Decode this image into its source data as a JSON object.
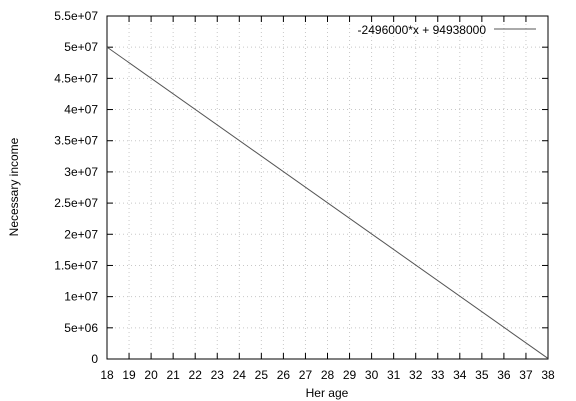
{
  "chart_data": {
    "type": "line",
    "title": "",
    "xlabel": "Her age",
    "ylabel": "Necessary income",
    "xlim": [
      18,
      38
    ],
    "ylim": [
      0,
      55000000
    ],
    "x_ticks": [
      "18",
      "19",
      "20",
      "21",
      "22",
      "23",
      "24",
      "25",
      "26",
      "27",
      "28",
      "29",
      "30",
      "31",
      "32",
      "33",
      "34",
      "35",
      "36",
      "37",
      "38"
    ],
    "x_tick_values": [
      18,
      19,
      20,
      21,
      22,
      23,
      24,
      25,
      26,
      27,
      28,
      29,
      30,
      31,
      32,
      33,
      34,
      35,
      36,
      37,
      38
    ],
    "y_ticks": [
      "0",
      "5e+06",
      "1e+07",
      "1.5e+07",
      "2e+07",
      "2.5e+07",
      "3e+07",
      "3.5e+07",
      "4e+07",
      "4.5e+07",
      "5e+07",
      "5.5e+07"
    ],
    "y_tick_values": [
      0,
      5000000,
      10000000,
      15000000,
      20000000,
      25000000,
      30000000,
      35000000,
      40000000,
      45000000,
      50000000,
      55000000
    ],
    "grid": true,
    "legend_position": "top-right",
    "series": [
      {
        "name": "-2496000*x + 94938000",
        "color": "#555555",
        "x": [
          18,
          38
        ],
        "y": [
          50010000,
          90000
        ]
      }
    ]
  }
}
